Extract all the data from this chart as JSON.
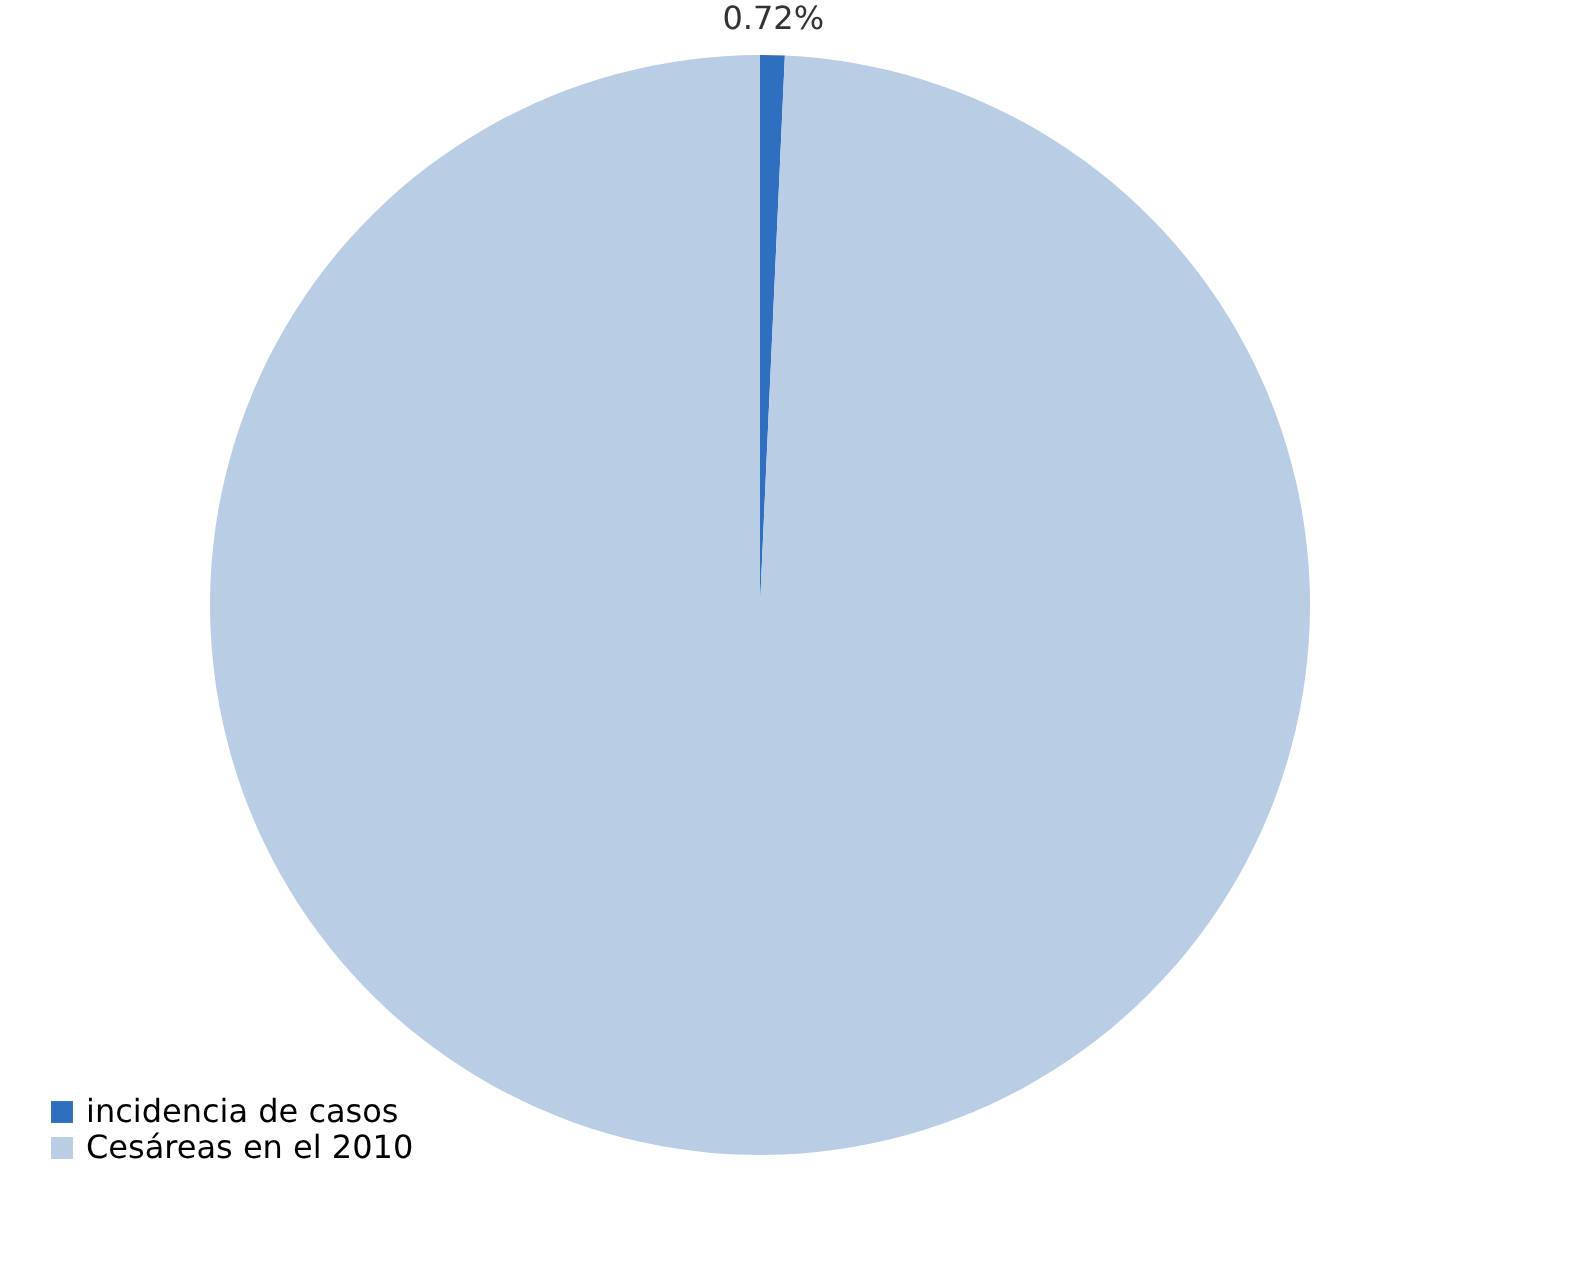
{
  "chart_data": {
    "type": "pie",
    "categories": [
      "incidencia de casos",
      "Cesáreas en el 2010"
    ],
    "values": [
      0.72,
      99.28
    ],
    "colors": [
      "#2e6fc0",
      "#b9cde5"
    ],
    "value_labels": [
      "0.72%",
      null
    ],
    "legend": "bottom left"
  }
}
